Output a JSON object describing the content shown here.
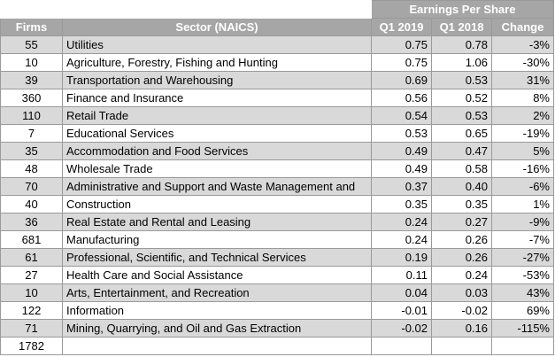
{
  "header": {
    "group_label": "Earnings Per Share",
    "columns": {
      "firms": "Firms",
      "sector": "Sector (NAICS)",
      "q1_2019": "Q1 2019",
      "q1_2018": "Q1 2018",
      "change": "Change"
    }
  },
  "rows": [
    {
      "firms": "55",
      "sector": "Utilities",
      "q1_2019": "0.75",
      "q1_2018": "0.78",
      "change": "-3%"
    },
    {
      "firms": "10",
      "sector": "Agriculture, Forestry, Fishing and Hunting",
      "q1_2019": "0.75",
      "q1_2018": "1.06",
      "change": "-30%"
    },
    {
      "firms": "39",
      "sector": "Transportation and Warehousing",
      "q1_2019": "0.69",
      "q1_2018": "0.53",
      "change": "31%"
    },
    {
      "firms": "360",
      "sector": "Finance and Insurance",
      "q1_2019": "0.56",
      "q1_2018": "0.52",
      "change": "8%"
    },
    {
      "firms": "110",
      "sector": "Retail Trade",
      "q1_2019": "0.54",
      "q1_2018": "0.53",
      "change": "2%"
    },
    {
      "firms": "7",
      "sector": "Educational Services",
      "q1_2019": "0.53",
      "q1_2018": "0.65",
      "change": "-19%"
    },
    {
      "firms": "35",
      "sector": "Accommodation and Food Services",
      "q1_2019": "0.49",
      "q1_2018": "0.47",
      "change": "5%"
    },
    {
      "firms": "48",
      "sector": "Wholesale Trade",
      "q1_2019": "0.49",
      "q1_2018": "0.58",
      "change": "-16%"
    },
    {
      "firms": "70",
      "sector": "Administrative and Support and Waste Management and",
      "q1_2019": "0.37",
      "q1_2018": "0.40",
      "change": "-6%"
    },
    {
      "firms": "40",
      "sector": "Construction",
      "q1_2019": "0.35",
      "q1_2018": "0.35",
      "change": "1%"
    },
    {
      "firms": "36",
      "sector": "Real Estate and Rental and Leasing",
      "q1_2019": "0.24",
      "q1_2018": "0.27",
      "change": "-9%"
    },
    {
      "firms": "681",
      "sector": "Manufacturing",
      "q1_2019": "0.24",
      "q1_2018": "0.26",
      "change": "-7%"
    },
    {
      "firms": "61",
      "sector": "Professional, Scientific, and Technical Services",
      "q1_2019": "0.19",
      "q1_2018": "0.26",
      "change": "-27%"
    },
    {
      "firms": "27",
      "sector": "Health Care and Social Assistance",
      "q1_2019": "0.11",
      "q1_2018": "0.24",
      "change": "-53%"
    },
    {
      "firms": "10",
      "sector": "Arts, Entertainment, and Recreation",
      "q1_2019": "0.04",
      "q1_2018": "0.03",
      "change": "43%"
    },
    {
      "firms": "122",
      "sector": "Information",
      "q1_2019": "-0.01",
      "q1_2018": "-0.02",
      "change": "69%"
    },
    {
      "firms": "71",
      "sector": "Mining, Quarrying, and Oil and Gas Extraction",
      "q1_2019": "-0.02",
      "q1_2018": "0.16",
      "change": "-115%"
    }
  ],
  "total": {
    "firms": "1782"
  },
  "colors": {
    "header_bg": "#a6a6a6",
    "header_text": "#ffffff",
    "shaded_row": "#d9d9d9",
    "grid": "#9a9a9a"
  }
}
